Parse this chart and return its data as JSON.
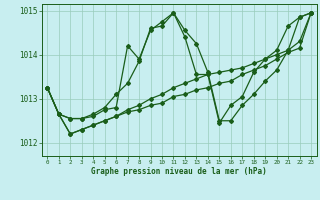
{
  "xlabel": "Graphe pression niveau de la mer (hPa)",
  "bg_color": "#c8eef0",
  "grid_color": "#99ccbb",
  "line_color": "#1a5e1a",
  "xlim": [
    -0.5,
    23.5
  ],
  "ylim": [
    1011.7,
    1015.15
  ],
  "yticks": [
    1012,
    1013,
    1014,
    1015
  ],
  "xticks": [
    0,
    1,
    2,
    3,
    4,
    5,
    6,
    7,
    8,
    9,
    10,
    11,
    12,
    13,
    14,
    15,
    16,
    17,
    18,
    19,
    20,
    21,
    22,
    23
  ],
  "series": [
    {
      "x": [
        0,
        1,
        2,
        3,
        4,
        5,
        6,
        7,
        8,
        9,
        10,
        11,
        12,
        13,
        14,
        15,
        16,
        17,
        18,
        19,
        20,
        21,
        22,
        23
      ],
      "y": [
        1013.25,
        1012.65,
        1012.55,
        1012.55,
        1012.6,
        1012.75,
        1012.8,
        1014.2,
        1013.9,
        1014.55,
        1014.75,
        1014.95,
        1014.4,
        1013.55,
        1013.55,
        1012.45,
        1012.85,
        1013.05,
        1013.6,
        1013.9,
        1014.1,
        1014.65,
        1014.85,
        1014.95
      ]
    },
    {
      "x": [
        0,
        1,
        2,
        3,
        4,
        5,
        6,
        7,
        8,
        9,
        10,
        11,
        12,
        13,
        14,
        15,
        16,
        17,
        18,
        19,
        20,
        21,
        22,
        23
      ],
      "y": [
        1013.25,
        1012.65,
        1012.55,
        1012.55,
        1012.65,
        1012.8,
        1013.1,
        1013.35,
        1013.85,
        1014.6,
        1014.65,
        1014.95,
        1014.55,
        1014.25,
        1013.6,
        1012.5,
        1012.5,
        1012.85,
        1013.1,
        1013.4,
        1013.65,
        1014.1,
        1014.85,
        1014.95
      ]
    },
    {
      "x": [
        0,
        1,
        2,
        3,
        4,
        5,
        6,
        7,
        8,
        9,
        10,
        11,
        12,
        13,
        14,
        15,
        16,
        17,
        18,
        19,
        20,
        21,
        22,
        23
      ],
      "y": [
        1013.25,
        1012.65,
        1012.2,
        1012.3,
        1012.4,
        1012.5,
        1012.6,
        1012.75,
        1012.85,
        1013.0,
        1013.1,
        1013.25,
        1013.35,
        1013.45,
        1013.55,
        1013.6,
        1013.65,
        1013.7,
        1013.8,
        1013.9,
        1014.0,
        1014.1,
        1014.3,
        1014.95
      ]
    },
    {
      "x": [
        0,
        1,
        2,
        3,
        4,
        5,
        6,
        7,
        8,
        9,
        10,
        11,
        12,
        13,
        14,
        15,
        16,
        17,
        18,
        19,
        20,
        21,
        22,
        23
      ],
      "y": [
        1013.25,
        1012.65,
        1012.2,
        1012.3,
        1012.4,
        1012.5,
        1012.6,
        1012.7,
        1012.75,
        1012.85,
        1012.9,
        1013.05,
        1013.1,
        1013.2,
        1013.25,
        1013.35,
        1013.4,
        1013.55,
        1013.65,
        1013.75,
        1013.9,
        1014.05,
        1014.15,
        1014.95
      ]
    }
  ]
}
